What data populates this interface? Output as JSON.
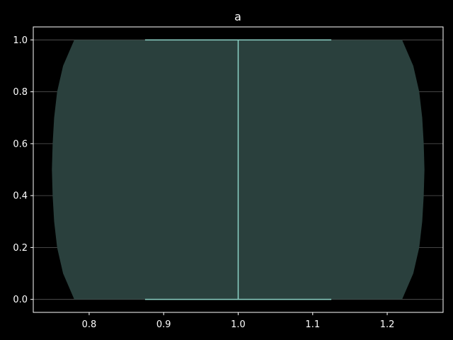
{
  "chart_data": {
    "type": "violin",
    "title": "a",
    "xlabel": "",
    "ylabel": "",
    "xlim": [
      0.725,
      1.275
    ],
    "ylim": [
      -0.05,
      1.05
    ],
    "x_ticks": [
      0.8,
      0.9,
      1.0,
      1.1,
      1.2
    ],
    "x_tick_labels": [
      "0.8",
      "0.9",
      "1.0",
      "1.1",
      "1.2"
    ],
    "y_ticks": [
      0.0,
      0.2,
      0.4,
      0.6,
      0.8,
      1.0
    ],
    "y_tick_labels": [
      "0.0",
      "0.2",
      "0.4",
      "0.6",
      "0.8",
      "1.0"
    ],
    "grid": {
      "y": true,
      "x": false
    },
    "violins": [
      {
        "position": 1.0,
        "min": 0.0,
        "max": 1.0,
        "cap_halfwidth": 0.125,
        "kde": [
          {
            "y": 0.0,
            "halfwidth": 0.22
          },
          {
            "y": 0.1,
            "halfwidth": 0.235
          },
          {
            "y": 0.2,
            "halfwidth": 0.243
          },
          {
            "y": 0.3,
            "halfwidth": 0.247
          },
          {
            "y": 0.4,
            "halfwidth": 0.249
          },
          {
            "y": 0.5,
            "halfwidth": 0.25
          },
          {
            "y": 0.6,
            "halfwidth": 0.249
          },
          {
            "y": 0.7,
            "halfwidth": 0.247
          },
          {
            "y": 0.8,
            "halfwidth": 0.243
          },
          {
            "y": 0.9,
            "halfwidth": 0.235
          },
          {
            "y": 1.0,
            "halfwidth": 0.22
          }
        ]
      }
    ],
    "colors": {
      "background": "#000000",
      "axes": "#ffffff",
      "grid": "#5a5a5a",
      "violin_fill": "#2a403d",
      "violin_line": "#8dd3c7"
    }
  }
}
